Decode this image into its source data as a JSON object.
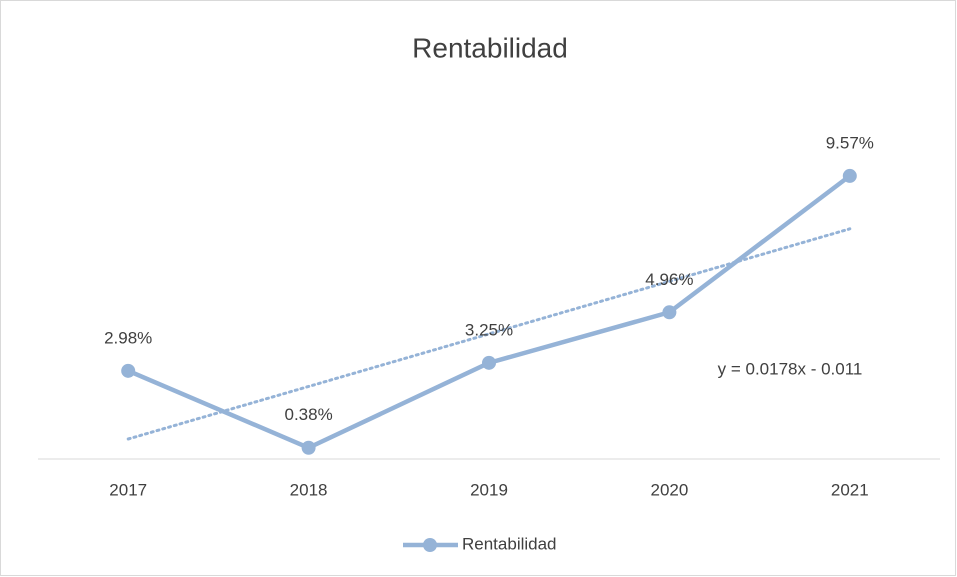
{
  "chart_data": {
    "type": "line",
    "title": "Rentabilidad",
    "categories": [
      "2017",
      "2018",
      "2019",
      "2020",
      "2021"
    ],
    "series": [
      {
        "name": "Rentabilidad",
        "color": "#95b3d7",
        "values": [
          2.98,
          0.38,
          3.25,
          4.96,
          9.57
        ],
        "value_labels": [
          "2.98%",
          "0.38%",
          "3.25%",
          "4.96%",
          "9.57%"
        ]
      }
    ],
    "ylim": [
      0,
      12
    ],
    "trendline": true,
    "annotation": "y = 0.0178x - 0.011",
    "legend": "bottom"
  }
}
